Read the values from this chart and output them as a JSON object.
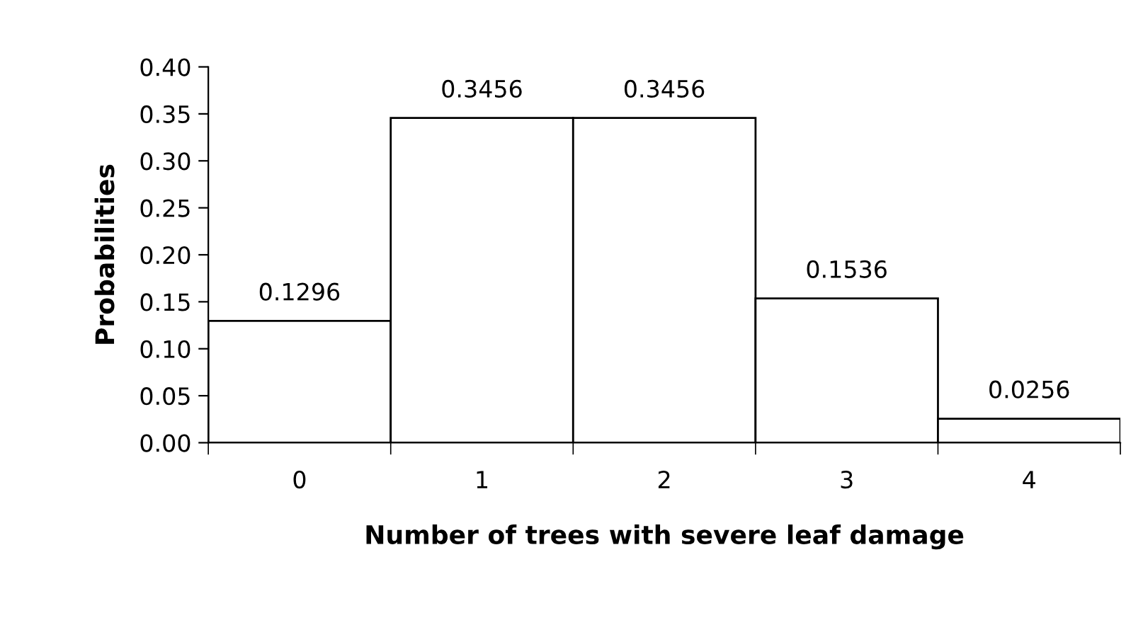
{
  "chart_data": {
    "type": "bar",
    "xlabel": "Number of trees with severe leaf damage",
    "ylabel": "Probabilities",
    "categories": [
      "0",
      "1",
      "2",
      "3",
      "4"
    ],
    "values": [
      0.1296,
      0.3456,
      0.3456,
      0.1536,
      0.0256
    ],
    "color": "#ffffff",
    "data_labels": true,
    "grid": false,
    "legend": false,
    "ylim": [
      0,
      0.4
    ],
    "yticks": [
      {
        "value": 0,
        "label": "0.00"
      },
      {
        "value": 0.05,
        "label": "0.05"
      },
      {
        "value": 0.1,
        "label": "0.10"
      },
      {
        "value": 0.15,
        "label": "0.15"
      },
      {
        "value": 0.2,
        "label": "0.20"
      },
      {
        "value": 0.25,
        "label": "0.25"
      },
      {
        "value": 0.3,
        "label": "0.30"
      },
      {
        "value": 0.35,
        "label": "0.35"
      },
      {
        "value": 0.4,
        "label": "0.40"
      }
    ]
  }
}
